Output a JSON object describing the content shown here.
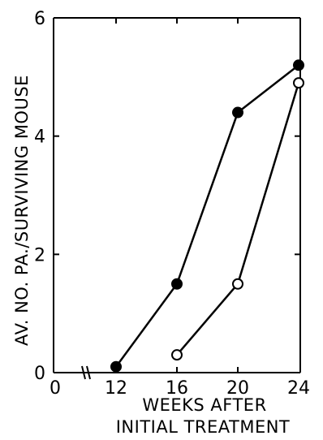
{
  "chart_data": {
    "type": "line",
    "title": "",
    "xlabel_line1": "WEEKS AFTER",
    "xlabel_line2": "INITIAL TREATMENT",
    "ylabel": "AV. NO. PA./SURVIVING MOUSE",
    "x_tick_labels": [
      "0",
      "12",
      "16",
      "20",
      "24"
    ],
    "y_tick_labels": [
      "0",
      "2",
      "4",
      "6"
    ],
    "xlim": [
      0,
      24
    ],
    "ylim": [
      0,
      6
    ],
    "axis_break": "x between 0 and 12",
    "grid": false,
    "legend": "none",
    "series": [
      {
        "marker": "filled-circle",
        "color": "#000000",
        "points": [
          {
            "x": 12,
            "y": 0.1
          },
          {
            "x": 16,
            "y": 1.5
          },
          {
            "x": 20,
            "y": 4.4
          },
          {
            "x": 24,
            "y": 5.2
          }
        ]
      },
      {
        "marker": "open-circle",
        "color": "#000000",
        "points": [
          {
            "x": 16,
            "y": 0.3
          },
          {
            "x": 20,
            "y": 1.5
          },
          {
            "x": 24,
            "y": 4.9
          }
        ]
      }
    ]
  }
}
